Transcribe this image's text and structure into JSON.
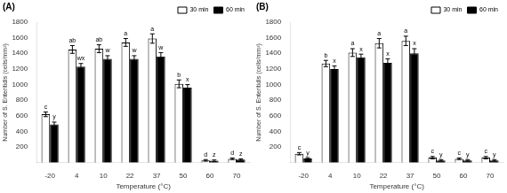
{
  "chart_data": [
    {
      "type": "bar",
      "title": "(A)",
      "categories": [
        "-20",
        "4",
        "10",
        "22",
        "37",
        "50",
        "60",
        "70"
      ],
      "series": [
        {
          "name": "30 min",
          "color": "white",
          "values": [
            620,
            1450,
            1460,
            1540,
            1590,
            1010,
            30,
            50
          ],
          "errors": [
            30,
            50,
            50,
            50,
            60,
            50,
            10,
            10
          ],
          "annotations": [
            "c",
            "ab",
            "ab",
            "a",
            "a",
            "b",
            "d",
            "d"
          ]
        },
        {
          "name": "60 min",
          "color": "black",
          "values": [
            490,
            1230,
            1330,
            1330,
            1360,
            960,
            25,
            40
          ],
          "errors": [
            30,
            40,
            40,
            40,
            50,
            40,
            10,
            10
          ],
          "annotations": [
            "y",
            "wx",
            "w",
            "w",
            "w",
            "x",
            "z",
            "z"
          ]
        }
      ],
      "xlabel": "Temperature (°C)",
      "ylabel": "Number of S. Enteritidis (cells/mm²)",
      "ylim": [
        0,
        1800
      ],
      "yticks": [
        {
          "value": 0,
          "label": ""
        },
        200,
        400,
        600,
        800,
        1000,
        1200,
        1400,
        1600,
        1800
      ],
      "grid": false,
      "legend": "upper right"
    },
    {
      "type": "bar",
      "title": "(B)",
      "categories": [
        "-20",
        "4",
        "10",
        "22",
        "37",
        "50",
        "60",
        "70"
      ],
      "series": [
        {
          "name": "30 min",
          "color": "white",
          "values": [
            115,
            1270,
            1410,
            1530,
            1560,
            65,
            50,
            65
          ],
          "errors": [
            15,
            40,
            50,
            60,
            60,
            15,
            10,
            15
          ],
          "annotations": [
            "c",
            "b",
            "a",
            "a",
            "a",
            "c",
            "c",
            "c"
          ]
        },
        {
          "name": "60 min",
          "color": "black",
          "values": [
            55,
            1200,
            1350,
            1280,
            1400,
            30,
            30,
            30
          ],
          "errors": [
            10,
            40,
            40,
            50,
            60,
            10,
            10,
            10
          ],
          "annotations": [
            "y",
            "x",
            "x",
            "x",
            "x",
            "y",
            "y",
            "y"
          ]
        }
      ],
      "xlabel": "Temperature (°C)",
      "ylabel": "Number of S. Enteritidis (cells/mm²)",
      "ylim": [
        0,
        1800
      ],
      "yticks": [
        {
          "value": 0,
          "label": ""
        },
        200,
        400,
        600,
        800,
        1000,
        1200,
        1400,
        1600,
        1800
      ],
      "grid": false,
      "legend": "upper right"
    }
  ]
}
